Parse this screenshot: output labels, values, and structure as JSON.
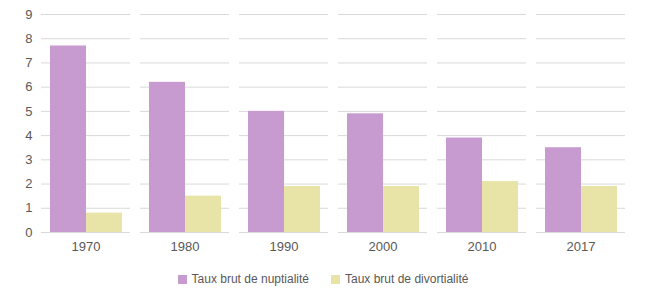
{
  "chart_data": {
    "type": "bar",
    "categories": [
      "1970",
      "1980",
      "1990",
      "2000",
      "2010",
      "2017"
    ],
    "series": [
      {
        "name": "Taux brut de nuptialité",
        "color": "#c79bd0",
        "values": [
          7.7,
          6.2,
          5.0,
          4.9,
          3.9,
          3.5
        ]
      },
      {
        "name": "Taux brut de divortialité",
        "color": "#e8e3a6",
        "values": [
          0.8,
          1.5,
          1.9,
          1.9,
          2.1,
          1.9
        ]
      }
    ],
    "ylim": [
      0,
      9
    ],
    "yticks": [
      0,
      1,
      2,
      3,
      4,
      5,
      6,
      7,
      8,
      9
    ],
    "grid": true,
    "legend": "bottom"
  }
}
